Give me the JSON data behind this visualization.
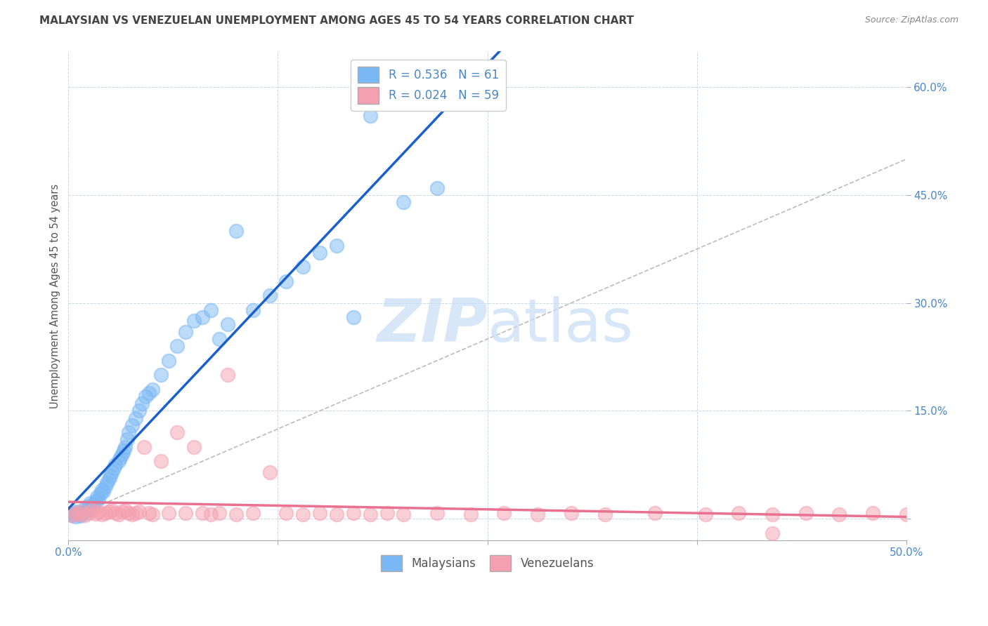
{
  "title": "MALAYSIAN VS VENEZUELAN UNEMPLOYMENT AMONG AGES 45 TO 54 YEARS CORRELATION CHART",
  "source_text": "Source: ZipAtlas.com",
  "ylabel": "Unemployment Among Ages 45 to 54 years",
  "xlim": [
    0.0,
    0.5
  ],
  "ylim": [
    -0.03,
    0.65
  ],
  "xtick_positions": [
    0.0,
    0.125,
    0.25,
    0.375,
    0.5
  ],
  "xtick_labels_visible": [
    "0.0%",
    "",
    "",
    "",
    "50.0%"
  ],
  "ytick_positions": [
    0.0,
    0.15,
    0.3,
    0.45,
    0.6
  ],
  "ytick_labels": [
    "",
    "15.0%",
    "30.0%",
    "45.0%",
    "60.0%"
  ],
  "legend_line1": "R = 0.536   N = 61",
  "legend_line2": "R = 0.024   N = 59",
  "malaysian_color": "#7ab8f5",
  "venezuelan_color": "#f4a0b0",
  "regression_malaysian_color": "#1a5fcc",
  "regression_venezuelan_color": "#e87090",
  "diagonal_color": "#aaaaaa",
  "watermark_color": "#c8ddf5",
  "background_color": "#ffffff",
  "grid_color": "#c8d8ea",
  "tick_label_color": "#4a86c8",
  "title_color": "#444444",
  "source_color": "#888888",
  "malaysian_x": [
    0.002,
    0.003,
    0.004,
    0.005,
    0.006,
    0.007,
    0.008,
    0.009,
    0.01,
    0.011,
    0.012,
    0.013,
    0.014,
    0.015,
    0.016,
    0.017,
    0.018,
    0.019,
    0.02,
    0.021,
    0.022,
    0.023,
    0.024,
    0.025,
    0.026,
    0.027,
    0.028,
    0.03,
    0.031,
    0.032,
    0.033,
    0.034,
    0.035,
    0.036,
    0.038,
    0.04,
    0.042,
    0.044,
    0.046,
    0.048,
    0.05,
    0.055,
    0.06,
    0.065,
    0.07,
    0.075,
    0.08,
    0.085,
    0.09,
    0.095,
    0.1,
    0.11,
    0.12,
    0.13,
    0.14,
    0.15,
    0.16,
    0.17,
    0.18,
    0.2,
    0.22
  ],
  "malaysian_y": [
    0.005,
    0.008,
    0.003,
    0.01,
    0.006,
    0.004,
    0.007,
    0.009,
    0.015,
    0.012,
    0.018,
    0.022,
    0.016,
    0.02,
    0.025,
    0.03,
    0.028,
    0.035,
    0.04,
    0.038,
    0.045,
    0.05,
    0.055,
    0.06,
    0.065,
    0.07,
    0.075,
    0.08,
    0.085,
    0.09,
    0.095,
    0.1,
    0.11,
    0.12,
    0.13,
    0.14,
    0.15,
    0.16,
    0.17,
    0.175,
    0.18,
    0.2,
    0.22,
    0.24,
    0.26,
    0.275,
    0.28,
    0.29,
    0.25,
    0.27,
    0.4,
    0.29,
    0.31,
    0.33,
    0.35,
    0.37,
    0.38,
    0.28,
    0.56,
    0.44,
    0.46
  ],
  "venezuelan_x": [
    0.002,
    0.004,
    0.006,
    0.008,
    0.01,
    0.012,
    0.014,
    0.016,
    0.018,
    0.02,
    0.022,
    0.024,
    0.026,
    0.028,
    0.03,
    0.032,
    0.034,
    0.036,
    0.038,
    0.04,
    0.042,
    0.045,
    0.048,
    0.05,
    0.055,
    0.06,
    0.065,
    0.07,
    0.075,
    0.08,
    0.085,
    0.09,
    0.095,
    0.1,
    0.11,
    0.12,
    0.13,
    0.14,
    0.15,
    0.16,
    0.17,
    0.18,
    0.19,
    0.2,
    0.22,
    0.24,
    0.26,
    0.28,
    0.3,
    0.32,
    0.35,
    0.38,
    0.4,
    0.42,
    0.44,
    0.46,
    0.48,
    0.5,
    0.42
  ],
  "venezuelan_y": [
    0.005,
    0.008,
    0.006,
    0.01,
    0.005,
    0.008,
    0.012,
    0.007,
    0.01,
    0.006,
    0.008,
    0.01,
    0.012,
    0.008,
    0.006,
    0.01,
    0.012,
    0.008,
    0.006,
    0.008,
    0.01,
    0.1,
    0.008,
    0.006,
    0.08,
    0.008,
    0.12,
    0.008,
    0.1,
    0.008,
    0.006,
    0.008,
    0.2,
    0.006,
    0.008,
    0.065,
    0.008,
    0.006,
    0.008,
    0.006,
    0.008,
    0.006,
    0.008,
    0.006,
    0.008,
    0.006,
    0.008,
    0.006,
    0.008,
    0.006,
    0.008,
    0.006,
    0.008,
    0.006,
    0.008,
    0.006,
    0.008,
    0.006,
    -0.02
  ]
}
